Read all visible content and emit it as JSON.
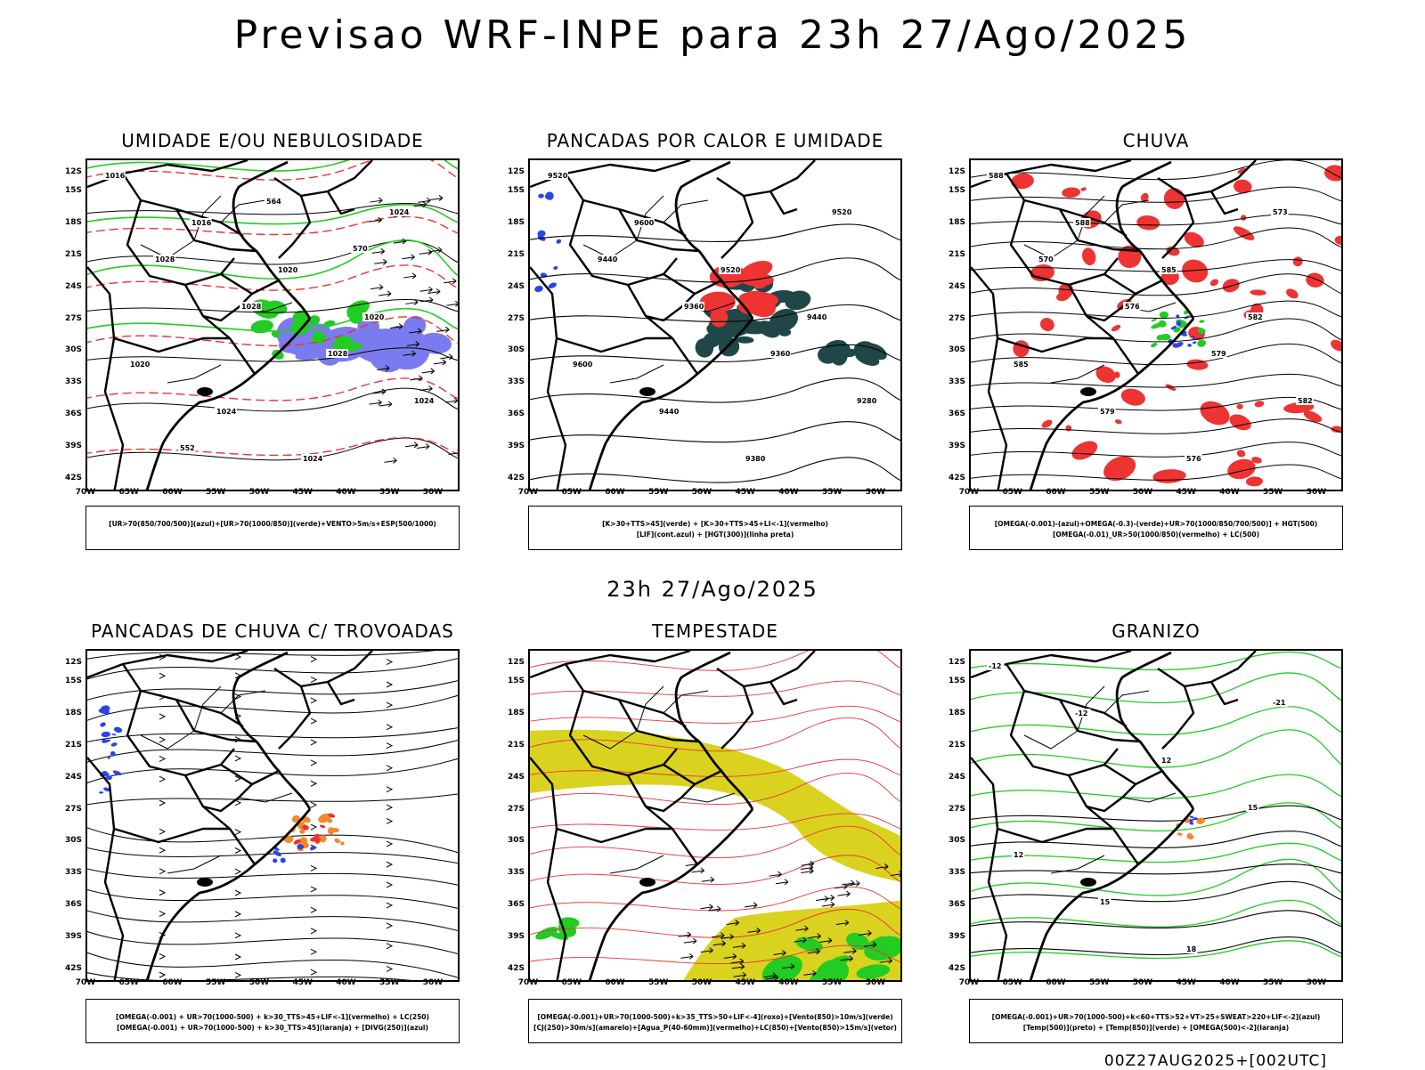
{
  "title": "Previsao WRF-INPE  para 23h 27/Ago/2025",
  "middle_title": "23h 27/Ago/2025",
  "footer": "00Z27AUG2025+[002UTC]",
  "lat_labels": [
    "12S",
    "15S",
    "18S",
    "21S",
    "24S",
    "27S",
    "30S",
    "33S",
    "36S",
    "39S",
    "42S"
  ],
  "lon_labels": [
    "70W",
    "65W",
    "60W",
    "55W",
    "50W",
    "45W",
    "40W",
    "35W",
    "30W"
  ],
  "colors": {
    "humid_blue": "#7b7bf0",
    "green": "#22cc22",
    "red": "#ee3333",
    "dark_teal": "#1f4747",
    "yellow": "#d9d31f",
    "orange": "#f08a2a",
    "blue": "#2a45e8"
  },
  "panels": [
    {
      "title": "UMIDADE E/OU NEBULOSIDADE",
      "legend": [
        "[UR>70(850/700/500)](azul)+[UR>70(1000/850)](verde)+VENTO>5m/s+ESP(500/1000)"
      ],
      "contour_labels": [
        "1016",
        "1016",
        "1020",
        "1020",
        "1020",
        "1024",
        "1024",
        "1024",
        "1028",
        "1028",
        "1028",
        "1024",
        "552",
        "564",
        "570"
      ]
    },
    {
      "title": "PANCADAS POR CALOR E UMIDADE",
      "legend": [
        "[K>30+TTS>45](verde)  +  [K>30+TTS>45+LI<-1](vermelho)",
        "[LIF](cont.azul)  +  [HGT(300)](linha preta)"
      ],
      "contour_labels": [
        "9520",
        "9600",
        "9520",
        "9440",
        "9600",
        "9440",
        "9380",
        "9520",
        "9440",
        "9360",
        "9360",
        "9280"
      ]
    },
    {
      "title": "CHUVA",
      "legend": [
        "[OMEGA(-0.001)-(azul)+OMEGA(-0.3)-(verde)+UR>70(1000/850/700/500)]  +  HGT(500)",
        "[OMEGA(-0.01)_UR>50(1000/850)(vermelho)  +  LC(500)"
      ],
      "contour_labels": [
        "588",
        "588",
        "585",
        "582",
        "585",
        "579",
        "576",
        "573",
        "570",
        "576",
        "579",
        "582"
      ]
    },
    {
      "title": "PANCADAS DE CHUVA C/ TROVOADAS",
      "legend": [
        "[OMEGA(-0.001)  +  UR>70(1000-500)  +  k>30_TTS>45+LIF<-1](vermelho)  +  LC(250)",
        "[OMEGA(-0.001)  +  UR>70(1000-500)  +  k>30_TTS>45](laranja)  +  [DIVG(250)](azul)"
      ]
    },
    {
      "title": "TEMPESTADE",
      "legend": [
        "[OMEGA(-0.001)+UR>70(1000-500)+k>35_TTS>50+LIF<-4](roxo)+[Vento(850)>10m/s](verde)",
        "[CJ(250)>30m/s](amarelo)+[Agua_P(40-60mm)](vermelho)+LC(850)+[Vento(850)>15m/s](vetor)"
      ]
    },
    {
      "title": "GRANIZO",
      "legend": [
        "[OMEGA(-0.001)+UR>70(1000-500)+k<60+TTS>52+VT>25+SWEAT>220+LIF<-2](azul)",
        "[Temp(500)](preto)  +  [Temp(850)](verde)  +  [OMEGA(500)<-2](laranja)"
      ],
      "contour_labels": [
        "-12",
        "-12",
        "12",
        "15",
        "12",
        "15",
        "18",
        "-21"
      ]
    }
  ]
}
